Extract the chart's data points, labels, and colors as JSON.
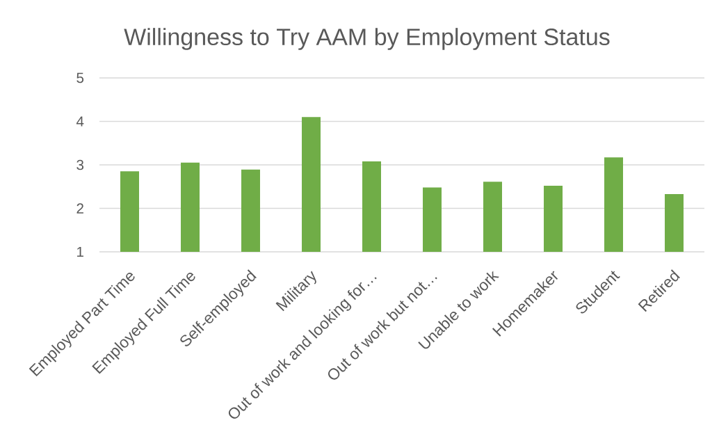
{
  "chart_data": {
    "type": "bar",
    "title": "Willingness to Try AAM by Employment Status",
    "categories": [
      "Employed Part Time",
      "Employed Full Time",
      "Self-employed",
      "Military",
      "Out of work and looking for…",
      "Out of work but not…",
      "Unable to work",
      "Homemaker",
      "Student",
      "Retired"
    ],
    "values": [
      2.85,
      3.05,
      2.89,
      4.1,
      3.08,
      2.48,
      2.61,
      2.52,
      3.17,
      2.33
    ],
    "color": "#70ad47",
    "ylim": [
      1,
      5
    ],
    "yticks": [
      1,
      2,
      3,
      4,
      5
    ],
    "grid": "y"
  }
}
